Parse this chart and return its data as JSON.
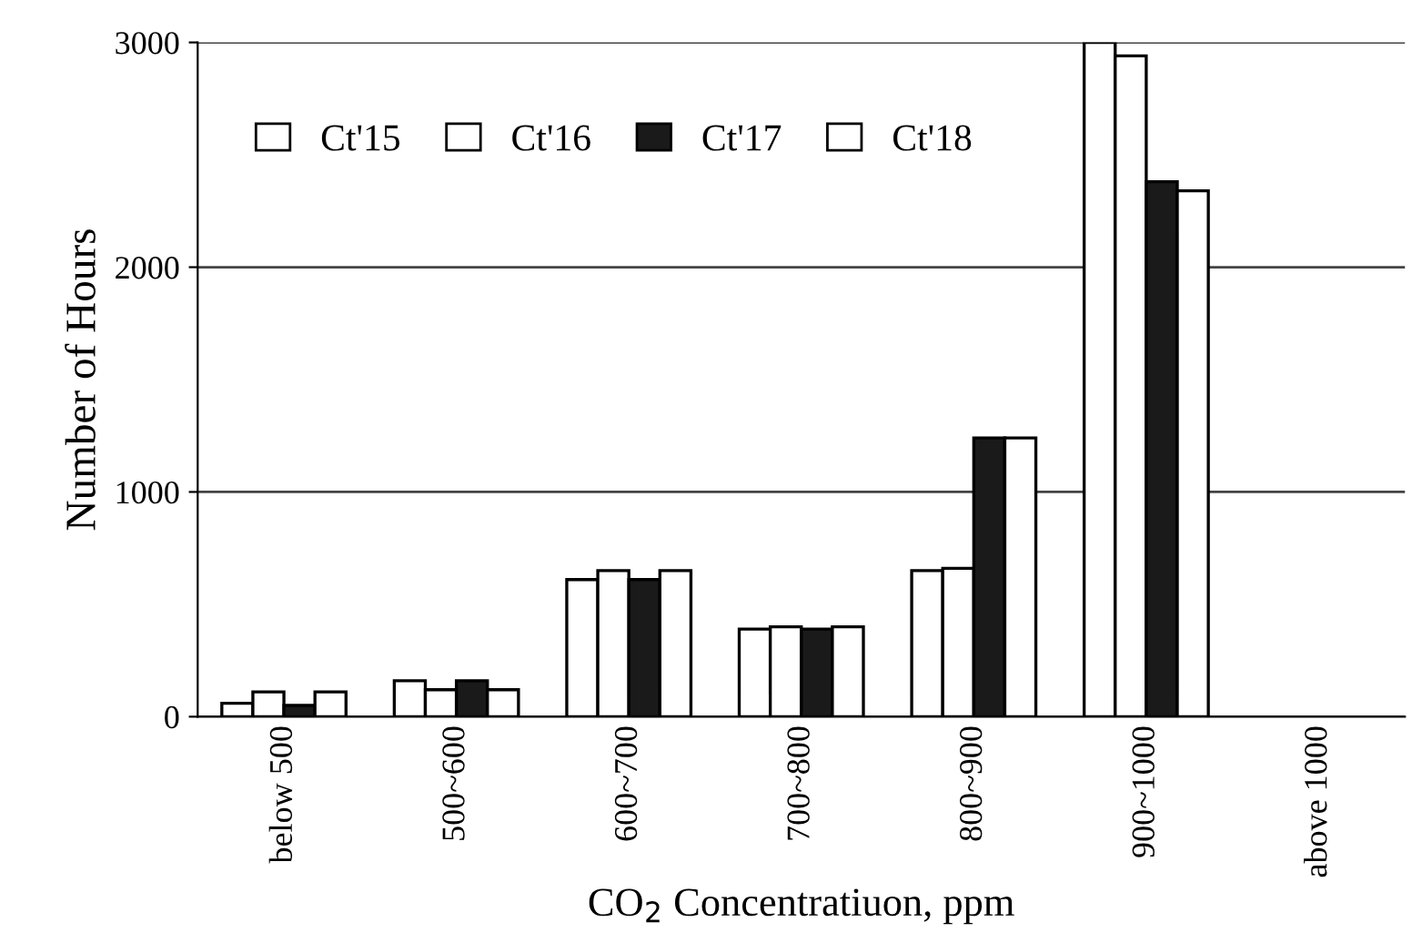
{
  "chart_data": {
    "type": "bar",
    "xlabel": "CO$_{2}$ Concentratiuon, ppm",
    "ylabel": "Number of Hours",
    "categories": [
      "below 500",
      "500~600",
      "600~700",
      "700~800",
      "800~900",
      "900~1000",
      "above 1000"
    ],
    "series": [
      {
        "name": "Ct'15",
        "color": "#ffffff",
        "values": [
          60,
          160,
          610,
          390,
          650,
          3000,
          null
        ]
      },
      {
        "name": "Ct'16",
        "color": "#ffffff",
        "values": [
          110,
          120,
          650,
          400,
          660,
          2940,
          null
        ]
      },
      {
        "name": "Ct'17",
        "color": "#1a1a1a",
        "values": [
          50,
          160,
          610,
          390,
          1240,
          2380,
          null
        ]
      },
      {
        "name": "Ct'18",
        "color": "#ffffff",
        "values": [
          110,
          120,
          650,
          400,
          1240,
          2340,
          null
        ]
      }
    ],
    "ylim": [
      0,
      3000
    ],
    "yticks": [
      0,
      1000,
      2000,
      3000
    ],
    "grid": "y",
    "legend": "top left"
  }
}
